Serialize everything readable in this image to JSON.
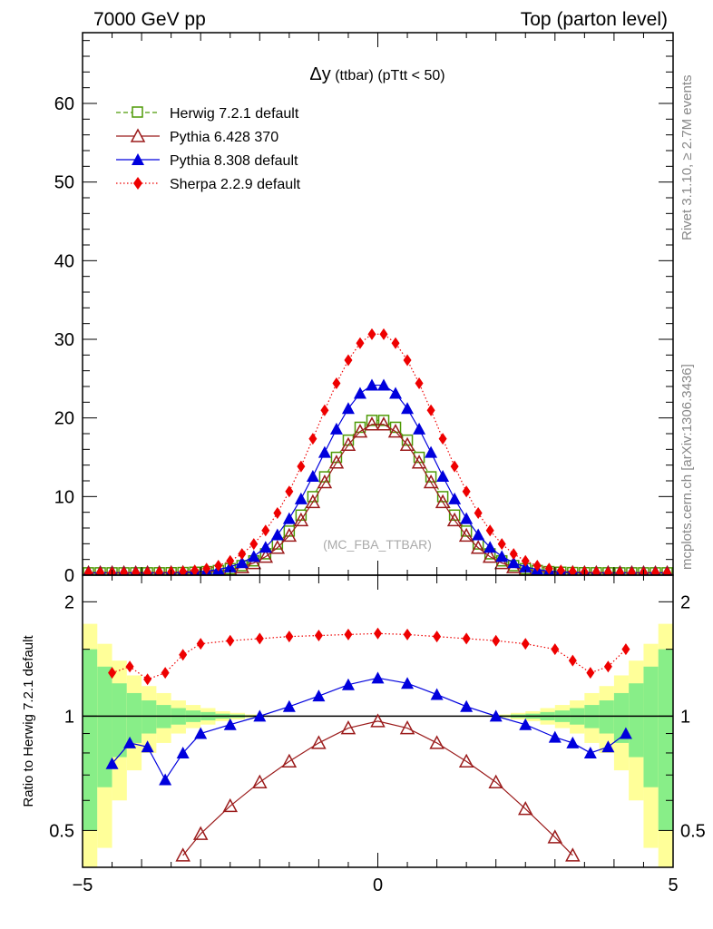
{
  "header": {
    "left": "7000 GeV pp",
    "right": "Top (parton level)"
  },
  "side_labels": {
    "rivet": "Rivet 3.1.10, ≥ 2.7M events",
    "mcplots": "mcplots.cern.ch [arXiv:1306.3436]"
  },
  "main_plot": {
    "title_symbol": "Δy",
    "title_rest": " (ttbar) (pTtt < 50)",
    "watermark": "(MC_FBA_TTBAR)",
    "y_ticks": [
      "0",
      "10",
      "20",
      "30",
      "40",
      "50",
      "60"
    ],
    "y_tick_values": [
      0,
      10,
      20,
      30,
      40,
      50,
      60
    ]
  },
  "ratio_plot": {
    "ylabel": "Ratio to Herwig 7.2.1 default",
    "y_ticks": [
      "0.5",
      "1",
      "2"
    ],
    "y_tick_values": [
      0.5,
      1,
      2
    ]
  },
  "x_ticks": [
    "−5",
    "0",
    "5"
  ],
  "x_tick_values": [
    -5,
    0,
    5
  ],
  "legend": [
    {
      "label": "Herwig 7.2.1 default",
      "color": "#4e9a06",
      "marker": "open-square",
      "dash": "dashed"
    },
    {
      "label": "Pythia 6.428 370",
      "color": "#9b1b1b",
      "marker": "open-triangle",
      "dash": "solid"
    },
    {
      "label": "Pythia 8.308 default",
      "color": "#0000dd",
      "marker": "filled-triangle",
      "dash": "solid"
    },
    {
      "label": "Sherpa 2.2.9 default",
      "color": "#ee0000",
      "marker": "filled-diamond",
      "dash": "dotted"
    }
  ],
  "chart_data": {
    "type": "line",
    "xlim": [
      -5,
      5
    ],
    "main_ylim": [
      0,
      69
    ],
    "ratio_ylim": [
      0.4,
      2.35
    ],
    "ratio_scale": "log",
    "series": [
      {
        "name": "Herwig 7.2.1 default",
        "peak": 19.5,
        "sigma": 0.93
      },
      {
        "name": "Pythia 6.428 370",
        "peak": 19.0,
        "sigma": 0.9
      },
      {
        "name": "Pythia 8.308 default",
        "peak": 24.0,
        "sigma": 0.95
      },
      {
        "name": "Sherpa 2.2.9 default",
        "peak": 30.5,
        "sigma": 1.02
      }
    ],
    "ratio_series": [
      {
        "name": "Pythia 6.428 370",
        "x": [
          -3.3,
          -3.0,
          -2.5,
          -2.0,
          -1.5,
          -1.0,
          -0.5,
          0,
          0.5,
          1.0,
          1.5,
          2.0,
          2.5,
          3.0,
          3.3
        ],
        "y": [
          0.43,
          0.49,
          0.58,
          0.67,
          0.76,
          0.85,
          0.93,
          0.97,
          0.93,
          0.85,
          0.76,
          0.67,
          0.57,
          0.48,
          0.43
        ]
      },
      {
        "name": "Pythia 8.308 default",
        "x": [
          -4.5,
          -4.2,
          -3.9,
          -3.6,
          -3.3,
          -3.0,
          -2.5,
          -2.0,
          -1.5,
          -1.0,
          -0.5,
          0,
          0.5,
          1.0,
          1.5,
          2.0,
          2.5,
          3.0,
          3.3,
          3.6,
          3.9,
          4.2
        ],
        "y": [
          0.75,
          0.85,
          0.83,
          0.68,
          0.8,
          0.9,
          0.95,
          1.0,
          1.06,
          1.13,
          1.21,
          1.26,
          1.22,
          1.14,
          1.06,
          1.0,
          0.95,
          0.88,
          0.85,
          0.8,
          0.83,
          0.9
        ]
      },
      {
        "name": "Sherpa 2.2.9 default",
        "x": [
          -4.5,
          -4.2,
          -3.9,
          -3.6,
          -3.3,
          -3.0,
          -2.5,
          -2.0,
          -1.5,
          -1.0,
          -0.5,
          0,
          0.5,
          1.0,
          1.5,
          2.0,
          2.5,
          3.0,
          3.3,
          3.6,
          3.9,
          4.2
        ],
        "y": [
          1.3,
          1.35,
          1.25,
          1.3,
          1.45,
          1.55,
          1.58,
          1.6,
          1.62,
          1.63,
          1.64,
          1.65,
          1.64,
          1.62,
          1.6,
          1.58,
          1.55,
          1.5,
          1.4,
          1.3,
          1.35,
          1.5
        ]
      }
    ],
    "bands": {
      "edges": [
        -5,
        -4.75,
        -4.5,
        -4.25,
        -4,
        -3.75,
        -3.5,
        -3.25,
        -3,
        -2.75,
        -2.5,
        -2.25,
        -2,
        2,
        2.25,
        2.5,
        2.75,
        3,
        3.25,
        3.5,
        3.75,
        4,
        4.25,
        4.5,
        4.75,
        5
      ],
      "yellow": [
        0.75,
        0.55,
        0.4,
        0.28,
        0.2,
        0.15,
        0.1,
        0.07,
        0.05,
        0.03,
        0.02,
        0.01,
        0,
        0.01,
        0.02,
        0.03,
        0.05,
        0.07,
        0.1,
        0.15,
        0.2,
        0.28,
        0.4,
        0.55,
        0.75
      ],
      "green": [
        0.5,
        0.35,
        0.22,
        0.15,
        0.1,
        0.07,
        0.05,
        0.035,
        0.025,
        0.015,
        0.01,
        0.005,
        0,
        0.005,
        0.01,
        0.015,
        0.025,
        0.035,
        0.05,
        0.07,
        0.1,
        0.15,
        0.22,
        0.35,
        0.5
      ]
    }
  }
}
